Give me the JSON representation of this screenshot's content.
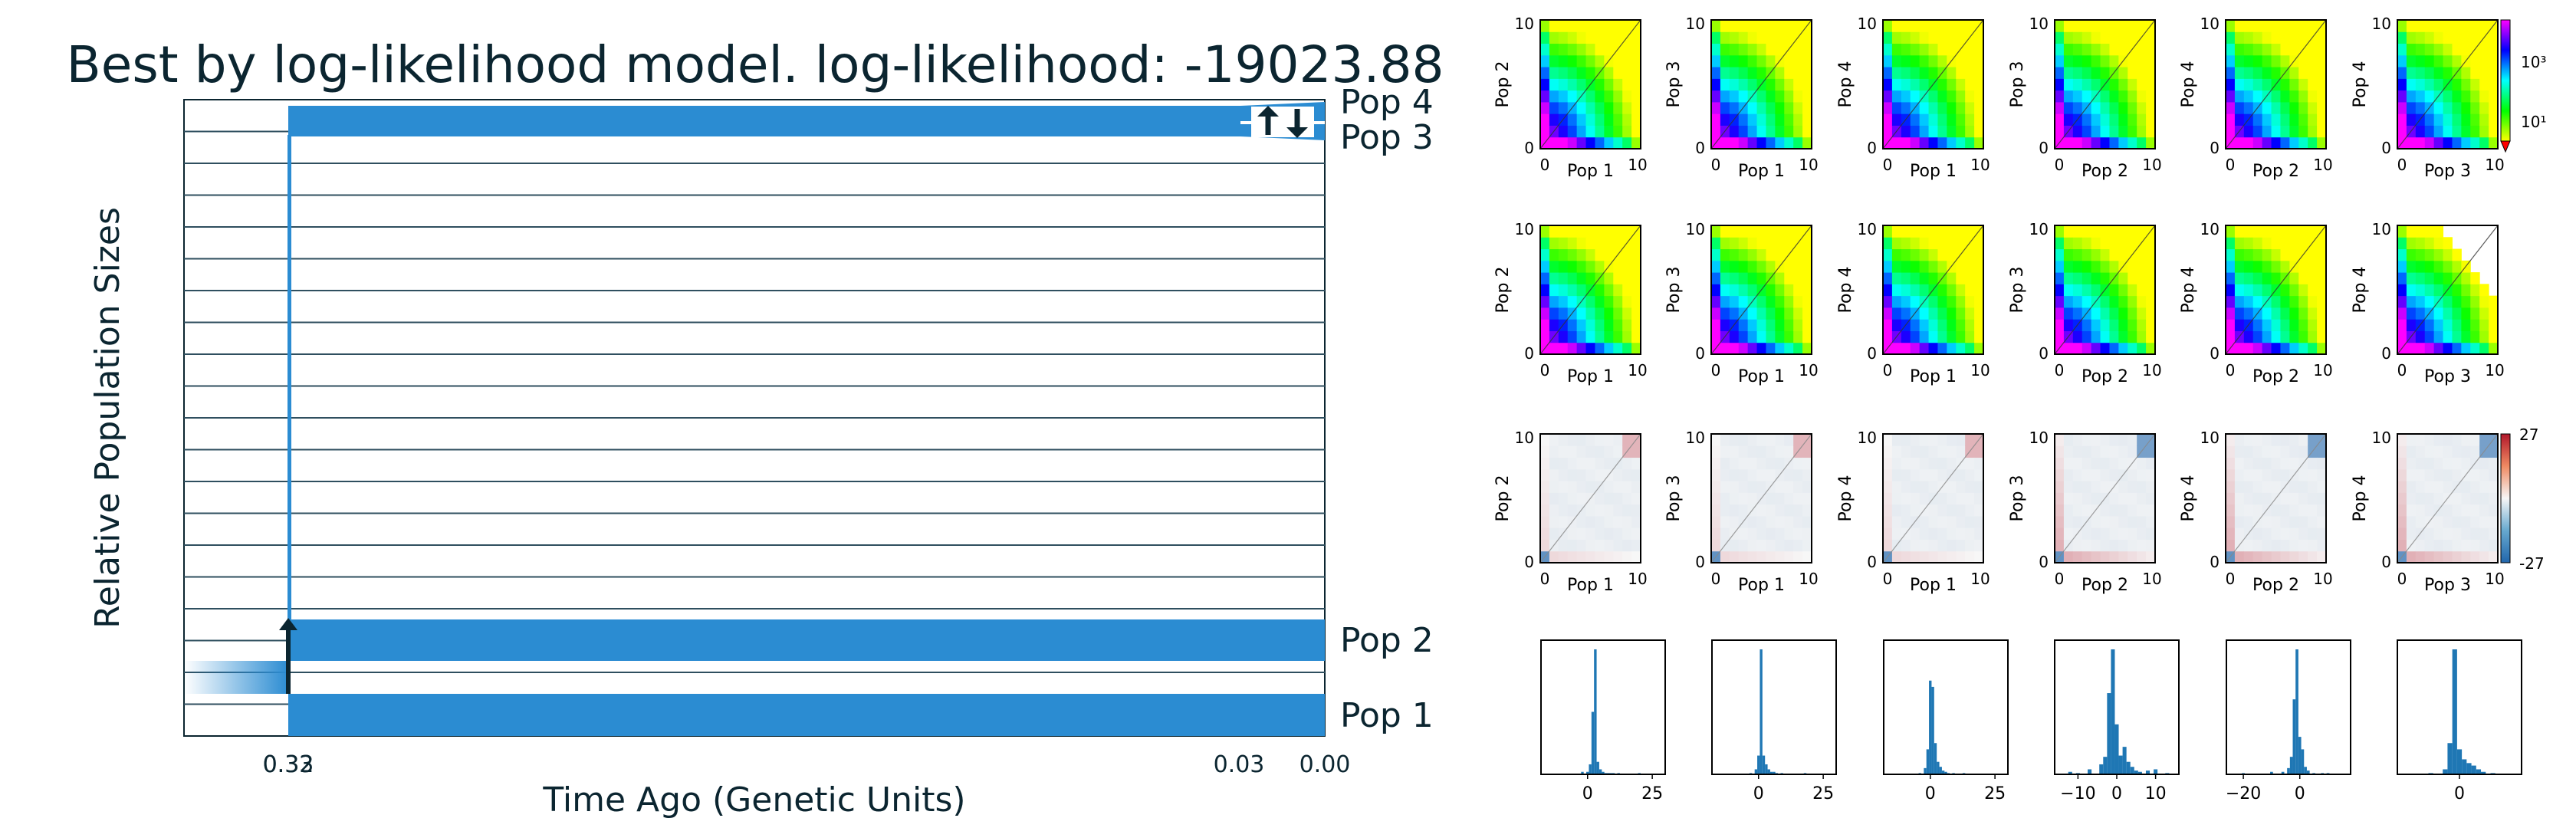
{
  "chart_data": [
    {
      "type": "demographic-model",
      "title": "Best by log-likelihood model. log-likelihood: -19023.88",
      "xlabel": "Time Ago (Genetic Units)",
      "ylabel": "Relative Population Sizes",
      "x_ticks": [
        "0.33",
        "0.32",
        "0.03",
        "0.00"
      ],
      "populations": [
        "Pop 4",
        "Pop 3",
        "Pop 2",
        "Pop 1"
      ],
      "colors": {
        "population": "#2b8cd2",
        "axis": "#0b2530",
        "grid": "#2f4f5f"
      }
    },
    {
      "type": "heatmap",
      "group": "model spectra",
      "panels": [
        {
          "xlabel": "Pop 1",
          "ylabel": "Pop 2"
        },
        {
          "xlabel": "Pop 1",
          "ylabel": "Pop 3"
        },
        {
          "xlabel": "Pop 1",
          "ylabel": "Pop 4"
        },
        {
          "xlabel": "Pop 2",
          "ylabel": "Pop 3"
        },
        {
          "xlabel": "Pop 2",
          "ylabel": "Pop 4"
        },
        {
          "xlabel": "Pop 3",
          "ylabel": "Pop 4"
        }
      ],
      "axis_range": [
        0,
        10
      ],
      "tick_labels": [
        "0",
        "10"
      ],
      "colorbar_ticks": [
        "10³",
        "10¹"
      ]
    },
    {
      "type": "heatmap",
      "group": "data spectra",
      "panels": [
        {
          "xlabel": "Pop 1",
          "ylabel": "Pop 2"
        },
        {
          "xlabel": "Pop 1",
          "ylabel": "Pop 3"
        },
        {
          "xlabel": "Pop 1",
          "ylabel": "Pop 4"
        },
        {
          "xlabel": "Pop 2",
          "ylabel": "Pop 3"
        },
        {
          "xlabel": "Pop 2",
          "ylabel": "Pop 4"
        },
        {
          "xlabel": "Pop 3",
          "ylabel": "Pop 4"
        }
      ],
      "axis_range": [
        0,
        10
      ],
      "tick_labels": [
        "0",
        "10"
      ]
    },
    {
      "type": "heatmap",
      "group": "residuals",
      "panels": [
        {
          "xlabel": "Pop 1",
          "ylabel": "Pop 2"
        },
        {
          "xlabel": "Pop 1",
          "ylabel": "Pop 3"
        },
        {
          "xlabel": "Pop 1",
          "ylabel": "Pop 4"
        },
        {
          "xlabel": "Pop 2",
          "ylabel": "Pop 3"
        },
        {
          "xlabel": "Pop 2",
          "ylabel": "Pop 4"
        },
        {
          "xlabel": "Pop 3",
          "ylabel": "Pop 4"
        }
      ],
      "axis_range": [
        0,
        10
      ],
      "tick_labels": [
        "0",
        "10"
      ],
      "colorbar_ticks": [
        "27",
        "-27"
      ],
      "colorbar_range": [
        -27,
        27
      ]
    },
    {
      "type": "bar",
      "group": "residual histograms",
      "panels": [
        {
          "x_ticks": [
            "0",
            "25"
          ],
          "xlim": [
            -18,
            30
          ],
          "bins": [
            [
              -2,
              2
            ],
            [
              0,
              2
            ],
            [
              1,
              8
            ],
            [
              2,
              50
            ],
            [
              3,
              100
            ],
            [
              4,
              10
            ],
            [
              5,
              4
            ],
            [
              6,
              2
            ],
            [
              7,
              1
            ],
            [
              8,
              1
            ],
            [
              9,
              1
            ],
            [
              10,
              1
            ],
            [
              12,
              1
            ],
            [
              20,
              1
            ]
          ]
        },
        {
          "x_ticks": [
            "0",
            "25"
          ],
          "xlim": [
            -18,
            30
          ],
          "bins": [
            [
              -3,
              1
            ],
            [
              -1,
              4
            ],
            [
              0,
              15
            ],
            [
              1,
              100
            ],
            [
              2,
              15
            ],
            [
              3,
              8
            ],
            [
              4,
              4
            ],
            [
              5,
              2
            ],
            [
              6,
              2
            ],
            [
              7,
              1
            ],
            [
              9,
              1
            ],
            [
              18,
              1
            ]
          ]
        },
        {
          "x_ticks": [
            "0",
            "25"
          ],
          "xlim": [
            -18,
            30
          ],
          "bins": [
            [
              -4,
              1
            ],
            [
              -2,
              5
            ],
            [
              -1,
              20
            ],
            [
              0,
              75
            ],
            [
              1,
              70
            ],
            [
              2,
              25
            ],
            [
              3,
              10
            ],
            [
              4,
              6
            ],
            [
              5,
              3
            ],
            [
              6,
              2
            ],
            [
              7,
              1
            ],
            [
              9,
              1
            ],
            [
              13,
              1
            ]
          ]
        },
        {
          "x_ticks": [
            "−10",
            "0",
            "10"
          ],
          "xlim": [
            -16,
            16
          ],
          "bins": [
            [
              -12,
              2
            ],
            [
              -10,
              1
            ],
            [
              -7,
              4
            ],
            [
              -4,
              8
            ],
            [
              -3,
              14
            ],
            [
              -2,
              65
            ],
            [
              -1,
              100
            ],
            [
              0,
              40
            ],
            [
              1,
              15
            ],
            [
              2,
              22
            ],
            [
              3,
              10
            ],
            [
              4,
              6
            ],
            [
              5,
              3
            ],
            [
              6,
              2
            ],
            [
              8,
              3
            ],
            [
              10,
              4
            ],
            [
              13,
              1
            ]
          ]
        },
        {
          "x_ticks": [
            "−20",
            "0"
          ],
          "xlim": [
            -26,
            18
          ],
          "bins": [
            [
              -20,
              1
            ],
            [
              -10,
              2
            ],
            [
              -6,
              2
            ],
            [
              -4,
              5
            ],
            [
              -3,
              14
            ],
            [
              -2,
              60
            ],
            [
              -1,
              100
            ],
            [
              0,
              30
            ],
            [
              1,
              20
            ],
            [
              2,
              6
            ],
            [
              3,
              3
            ],
            [
              5,
              1
            ],
            [
              8,
              1
            ],
            [
              10,
              1
            ]
          ]
        },
        {
          "x_ticks": [
            "0"
          ],
          "xlim": [
            -13,
            13
          ],
          "bins": [
            [
              -6,
              1
            ],
            [
              -3,
              4
            ],
            [
              -2,
              25
            ],
            [
              -1,
              100
            ],
            [
              0,
              20
            ],
            [
              1,
              12
            ],
            [
              2,
              9
            ],
            [
              3,
              7
            ],
            [
              4,
              4
            ],
            [
              5,
              2
            ],
            [
              7,
              1
            ]
          ]
        }
      ]
    }
  ]
}
